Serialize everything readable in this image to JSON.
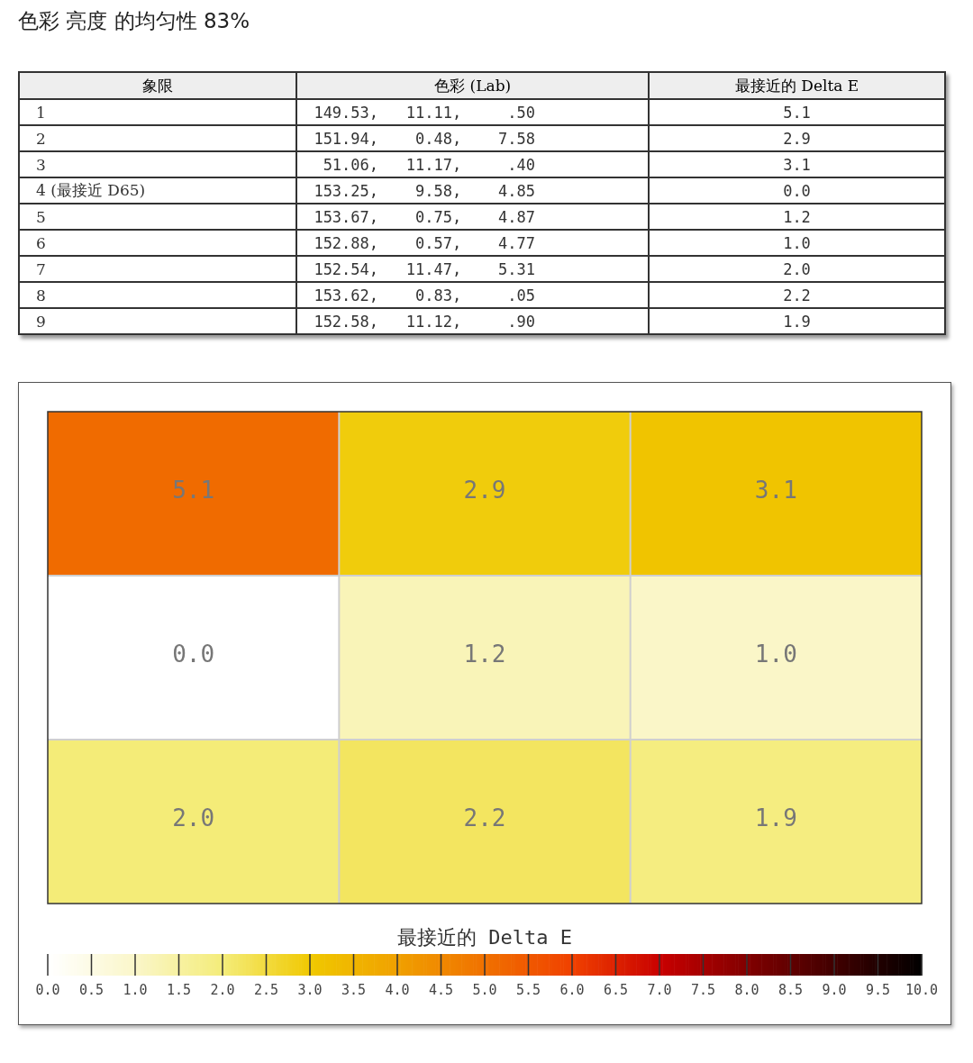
{
  "chart_data": [
    {
      "type": "other",
      "title": "色彩 亮度 的均匀性 83%",
      "categories": [
        "象限",
        "色彩 (Lab)",
        "最接近的 Delta E"
      ],
      "cell_labels": [
        [
          "1",
          "149.53,   11.11,     .50",
          "5.1"
        ],
        [
          "2",
          "151.94,    0.48,    7.58",
          "2.9"
        ],
        [
          "3",
          " 51.06,   11.17,     .40",
          "3.1"
        ],
        [
          "4 (最接近 D65)",
          "153.25,    9.58,    4.85",
          "0.0"
        ],
        [
          "5",
          "153.67,    0.75,    4.87",
          "1.2"
        ],
        [
          "6",
          "152.88,    0.57,    4.77",
          "1.0"
        ],
        [
          "7",
          "152.54,   11.47,    5.31",
          "2.0"
        ],
        [
          "8",
          "153.62,    0.83,     .05",
          "2.2"
        ],
        [
          "9",
          "152.58,   11.12,     .90",
          "1.9"
        ]
      ]
    },
    {
      "type": "heatmap",
      "categories": [
        null,
        null,
        null
      ],
      "y_categories": [
        null,
        null,
        null
      ],
      "cells": [
        [
          5.1,
          2.9,
          3.1
        ],
        [
          0.0,
          1.2,
          1.0
        ],
        [
          2.0,
          2.2,
          1.9
        ]
      ],
      "cell_labels": [
        [
          "5.1",
          "2.9",
          "3.1"
        ],
        [
          "0.0",
          "1.2",
          "1.0"
        ],
        [
          "2.0",
          "2.2",
          "1.9"
        ]
      ],
      "clabel": "最接近的 Delta E",
      "clim": [
        0,
        10
      ],
      "cticks": [
        {
          "value": 0,
          "label": "0.0"
        },
        {
          "value": 0.5,
          "label": "0.5"
        },
        {
          "value": 1,
          "label": "1.0"
        },
        {
          "value": 1.5,
          "label": "1.5"
        },
        {
          "value": 2,
          "label": "2.0"
        },
        {
          "value": 2.5,
          "label": "2.5"
        },
        {
          "value": 3,
          "label": "3.0"
        },
        {
          "value": 3.5,
          "label": "3.5"
        },
        {
          "value": 4,
          "label": "4.0"
        },
        {
          "value": 4.5,
          "label": "4.5"
        },
        {
          "value": 5,
          "label": "5.0"
        },
        {
          "value": 5.5,
          "label": "5.5"
        },
        {
          "value": 6,
          "label": "6.0"
        },
        {
          "value": 6.5,
          "label": "6.5"
        },
        {
          "value": 7,
          "label": "7.0"
        },
        {
          "value": 7.5,
          "label": "7.5"
        },
        {
          "value": 8,
          "label": "8.0"
        },
        {
          "value": 8.5,
          "label": "8.5"
        },
        {
          "value": 9,
          "label": "9.0"
        },
        {
          "value": 9.5,
          "label": "9.5"
        },
        {
          "value": 10,
          "label": "10.0"
        }
      ]
    }
  ]
}
